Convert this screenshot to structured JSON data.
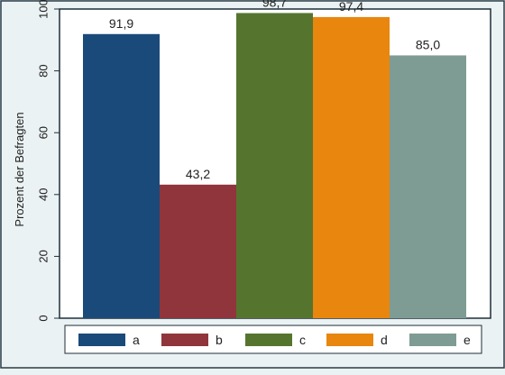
{
  "chart_data": {
    "type": "bar",
    "categories": [
      "a",
      "b",
      "c",
      "d",
      "e"
    ],
    "values": [
      91.9,
      43.2,
      98.7,
      97.4,
      85.0
    ],
    "value_labels": [
      "91,9",
      "43,2",
      "98,7",
      "97,4",
      "85,0"
    ],
    "colors": [
      "#1a4a7a",
      "#90353b",
      "#55752f",
      "#e8860e",
      "#7e9c93"
    ],
    "ylabel": "Prozent der Befragten",
    "ylim": [
      0,
      100
    ],
    "yticks": [
      0,
      20,
      40,
      60,
      80,
      100
    ],
    "grid": false,
    "legend": {
      "placement": "bottom",
      "entries": [
        "a",
        "b",
        "c",
        "d",
        "e"
      ]
    }
  },
  "style": {
    "page_background": "#eaf2f3",
    "plot_background": "#ffffff",
    "frame_color": "#1e2e3a"
  }
}
